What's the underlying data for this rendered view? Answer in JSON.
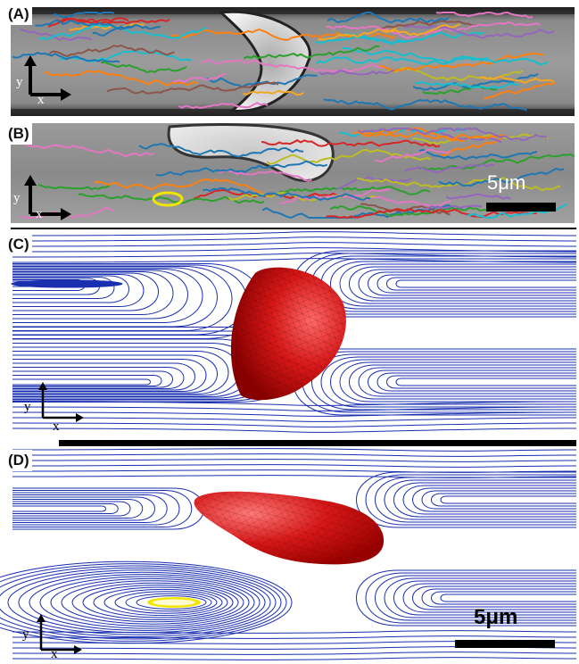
{
  "panels": [
    {
      "id": "A",
      "label": "(A)",
      "axis_y": "y",
      "axis_x": "x"
    },
    {
      "id": "B",
      "label": "(B)",
      "axis_y": "y",
      "axis_x": "x",
      "scale_bar": "5μm"
    },
    {
      "id": "C",
      "label": "(C)",
      "axis_y": "y",
      "axis_x": "x"
    },
    {
      "id": "D",
      "label": "(D)",
      "axis_y": "y",
      "axis_x": "x",
      "scale_bar": "5μm"
    }
  ],
  "colors": {
    "streamline": "#1a2fb0",
    "cell": "#d21818",
    "highlight": "#f2e600",
    "track_palette": [
      "#1f77b4",
      "#ff7f0e",
      "#2ca02c",
      "#d62728",
      "#9467bd",
      "#8c564b",
      "#e377c2",
      "#17becf",
      "#bcbd22",
      "#f5a623"
    ]
  }
}
